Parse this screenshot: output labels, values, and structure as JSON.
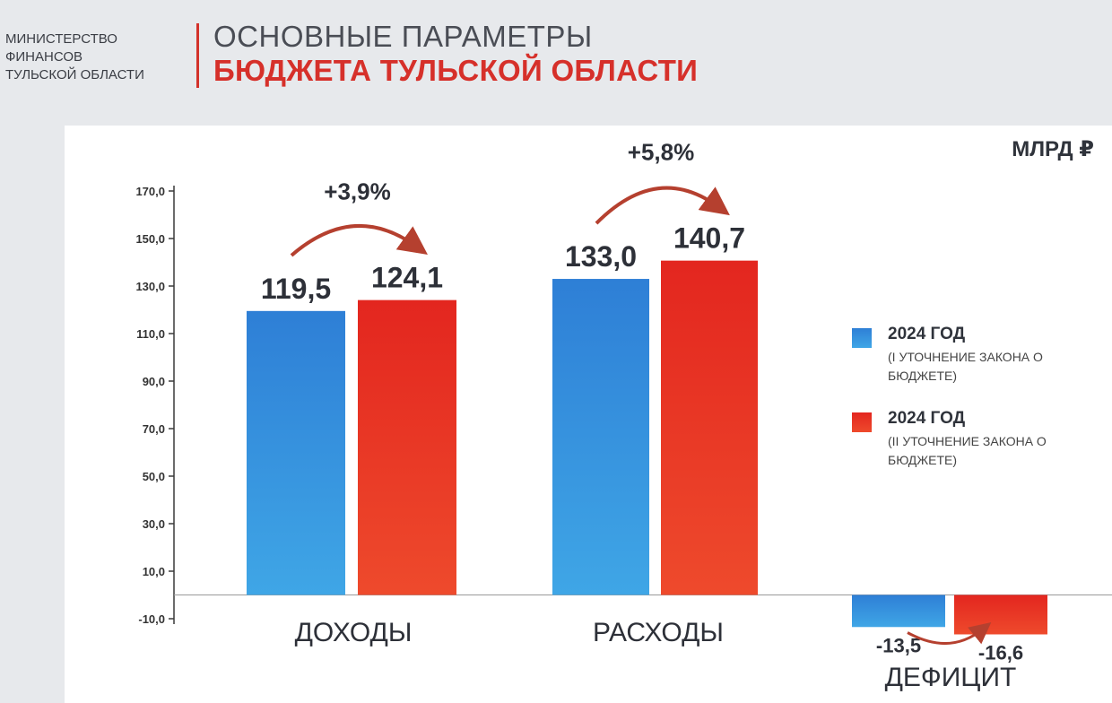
{
  "header": {
    "ministry_lines": [
      "МИНИСТЕРСТВО",
      "ФИНАНСОВ",
      "ТУЛЬСКОЙ ОБЛАСТИ"
    ],
    "title_line_1": "ОСНОВНЫЕ ПАРАМЕТРЫ",
    "title_line_2": "БЮДЖЕТА ТУЛЬСКОЙ ОБЛАСТИ"
  },
  "colors": {
    "series_1": "#2f86d8",
    "series_2": "#e02a22",
    "accent": "#d6302a",
    "arrow": "#b5402f"
  },
  "chart_data": {
    "type": "bar",
    "unit": "МЛРД ₽",
    "categories": [
      "ДОХОДЫ",
      "РАСХОДЫ",
      "ДЕФИЦИТ"
    ],
    "series": [
      {
        "name": "2024 ГОД",
        "name_sub": "(I УТОЧНЕНИЕ ЗАКОНА О БЮДЖЕТЕ)",
        "values": [
          119.5,
          133.0,
          -13.5
        ],
        "labels": [
          "119,5",
          "133,0",
          "-13,5"
        ]
      },
      {
        "name": "2024 ГОД",
        "name_sub": "(II УТОЧНЕНИЕ ЗАКОНА О БЮДЖЕТЕ)",
        "values": [
          124.1,
          140.7,
          -16.6
        ],
        "labels": [
          "124,1",
          "140,7",
          "-16,6"
        ]
      }
    ],
    "changes": [
      "+3,9%",
      "+5,8%"
    ],
    "yticks": [
      -10,
      10,
      30,
      50,
      70,
      90,
      110,
      130,
      150,
      170
    ],
    "ytick_labels": [
      "-10,0",
      "10,0",
      "30,0",
      "50,0",
      "70,0",
      "90,0",
      "110,0",
      "130,0",
      "150,0",
      "170,0"
    ],
    "ylim": [
      -10,
      170
    ],
    "grid": false,
    "legend_position": "right"
  }
}
